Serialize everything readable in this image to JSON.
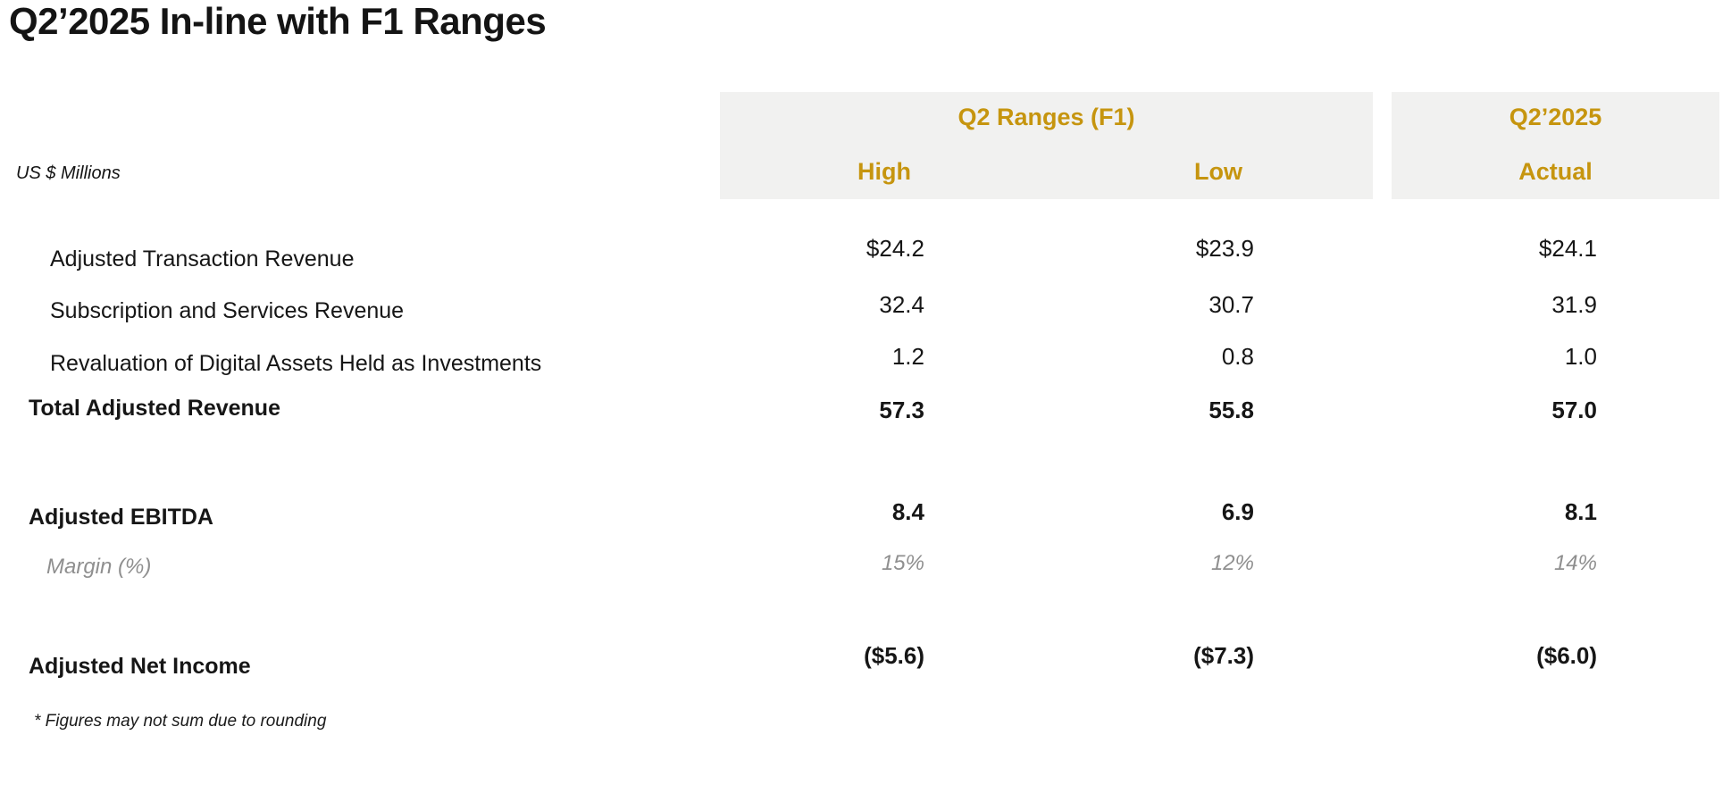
{
  "slide": {
    "title": "Q2’2025 In-line with F1 Ranges",
    "units_label": "US $ Millions",
    "footnote": "* Figures may not sum due to rounding",
    "colors": {
      "accent_gold": "#C6950F",
      "header_band_bg": "#F1F1F0",
      "muted_gray": "#8F8F8F",
      "text": "#161616"
    }
  },
  "table": {
    "header": {
      "range_group_label": "Q2 Ranges (F1)",
      "high_label": "High",
      "low_label": "Low",
      "actual_group_label": "Q2’2025",
      "actual_label": "Actual"
    },
    "rows": [
      {
        "label": "Adjusted Transaction Revenue",
        "high": "$24.2",
        "low": "$23.9",
        "actual": "$24.1",
        "style": "regular"
      },
      {
        "label": "Subscription and Services Revenue",
        "high": "32.4",
        "low": "30.7",
        "actual": "31.9",
        "style": "regular"
      },
      {
        "label": "Revaluation of Digital Assets Held as Investments",
        "high": "1.2",
        "low": "0.8",
        "actual": "1.0",
        "style": "regular"
      },
      {
        "label": "Total Adjusted Revenue",
        "high": "57.3",
        "low": "55.8",
        "actual": "57.0",
        "style": "total-bold"
      },
      {
        "label": "Adjusted EBITDA",
        "high": "8.4",
        "low": "6.9",
        "actual": "8.1",
        "style": "total-bold"
      },
      {
        "label": "Margin (%)",
        "high": "15%",
        "low": "12%",
        "actual": "14%",
        "style": "margin-italic-gray"
      },
      {
        "label": "Adjusted Net Income",
        "high": "($5.6)",
        "low": "($7.3)",
        "actual": "($6.0)",
        "style": "total-bold"
      }
    ]
  }
}
